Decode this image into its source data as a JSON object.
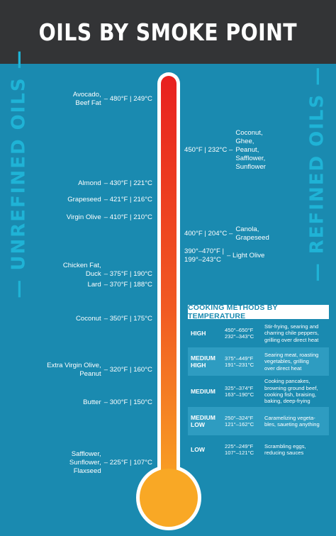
{
  "title": "OILS BY SMOKE POINT",
  "side_left": "— UNREFINED OILS —",
  "side_right": "— REFINED OILS —",
  "unrefined": [
    {
      "name_lines": [
        "Avocado,",
        "Beef Fat"
      ],
      "temp": "– 480°F | 249°C"
    },
    {
      "name_lines": [
        "Almond"
      ],
      "temp": "– 430°F | 221°C"
    },
    {
      "name_lines": [
        "Grapeseed"
      ],
      "temp": "– 421°F | 216°C"
    },
    {
      "name_lines": [
        "Virgin Olive"
      ],
      "temp": "– 410°F | 210°C"
    },
    {
      "name_lines": [
        "Chicken Fat,",
        "Duck"
      ],
      "temp": "– 375°F | 190°C"
    },
    {
      "name_lines": [
        "Lard"
      ],
      "temp": "– 370°F | 188°C"
    },
    {
      "name_lines": [
        "Coconut"
      ],
      "temp": "– 350°F | 175°C"
    },
    {
      "name_lines": [
        "Extra Virgin Olive,",
        "Peanut"
      ],
      "temp": "– 320°F | 160°C"
    },
    {
      "name_lines": [
        "Butter"
      ],
      "temp": "– 300°F | 150°C"
    },
    {
      "name_lines": [
        "Safflower,",
        "Sunflower,",
        "Flaxseed"
      ],
      "temp": "– 225°F | 107°C"
    }
  ],
  "refined": [
    {
      "temp_lines": [
        "450°F | 232°C –"
      ],
      "name_lines": [
        "Coconut,",
        "Ghee,",
        "Peanut,",
        "Safflower,",
        "Sunflower"
      ]
    },
    {
      "temp_lines": [
        "400°F | 204°C –"
      ],
      "name_lines": [
        "Canola,",
        "Grapeseed"
      ]
    },
    {
      "temp_lines": [
        "390°–470°F |",
        "199°–243°C"
      ],
      "name_lines": [
        "– Light Olive"
      ]
    }
  ],
  "cooking": {
    "title": "COOKING METHODS BY TEMPERATURE",
    "rows": [
      {
        "level": [
          "HIGH"
        ],
        "temp": [
          "450°–650°F",
          "232°–343°C"
        ],
        "desc": [
          "Stir-frying, searing and",
          "charring chile peppers,",
          "grilling over direct heat"
        ]
      },
      {
        "level": [
          "MEDIUM",
          "HIGH"
        ],
        "temp": [
          "375°–449°F",
          "191°–231°C"
        ],
        "desc": [
          "Searing meat, roasting",
          "vegetables, grilling",
          "over direct heat"
        ]
      },
      {
        "level": [
          "MEDIUM"
        ],
        "temp": [
          "325°–374°F",
          "163°–190°C"
        ],
        "desc": [
          "Cooking pancakes,",
          "browning ground beef,",
          "cooking fish, braising,",
          "baking, deep-frying"
        ]
      },
      {
        "level": [
          "MEDIUM",
          "LOW"
        ],
        "temp": [
          "250°–324°F",
          "121°–162°C"
        ],
        "desc": [
          "Caramelizing vegeta-",
          "bles, saueting anything"
        ]
      },
      {
        "level": [
          "LOW"
        ],
        "temp": [
          "225°–249°F",
          "107°–121°C"
        ],
        "desc": [
          "Scrambling eggs,",
          "reducing sauces"
        ]
      }
    ]
  },
  "colors": {
    "background": "#1a8ab0",
    "header": "#333436",
    "side_text": "#1fb3d6",
    "thermo_top": "#e8201f",
    "thermo_bottom": "#f9a825"
  }
}
